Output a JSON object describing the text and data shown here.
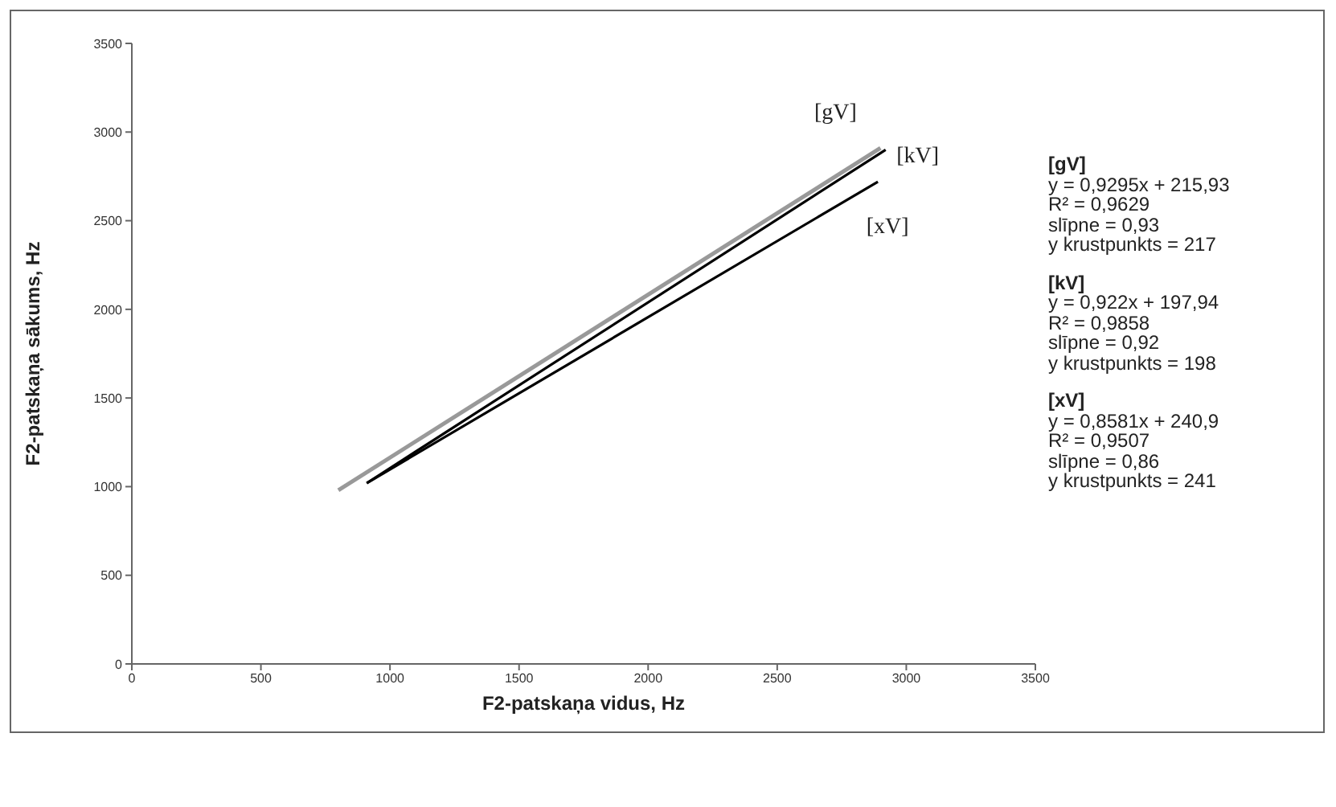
{
  "chart_data": {
    "type": "line",
    "xlabel": "F2-patskaņa vidus, Hz",
    "ylabel": "F2-patskaņa sākums, Hz",
    "xlim": [
      0,
      3500
    ],
    "xticks": [
      0,
      500,
      1000,
      1500,
      2000,
      2500,
      3000,
      3500
    ],
    "ylim": [
      0,
      3500
    ],
    "yticks": [
      0,
      500,
      1000,
      1500,
      2000,
      2500,
      3000,
      3500
    ],
    "series": [
      {
        "name": "[gV]",
        "color": "#999999",
        "x": [
          800,
          2900
        ],
        "values": [
          980,
          2910
        ]
      },
      {
        "name": "[kV]",
        "color": "#000000",
        "x": [
          910,
          2920
        ],
        "values": [
          1020,
          2900
        ]
      },
      {
        "name": "[xV]",
        "color": "#000000",
        "x": [
          910,
          2890
        ],
        "values": [
          1020,
          2720
        ]
      }
    ],
    "annotations": [
      "[gV]",
      "y = 0,9295x + 215,93",
      "R² = 0,9629",
      "slīpne = 0,93",
      "y krustpunkts = 217",
      "[kV]",
      "y = 0,922x + 197,94",
      "R² = 0,9858",
      "slīpne = 0,92",
      "y krustpunkts = 198",
      "[xV]",
      "y = 0,8581x + 240,9",
      "R² = 0,9507",
      "slīpne = 0,86",
      "y krustpunkts = 241"
    ]
  }
}
